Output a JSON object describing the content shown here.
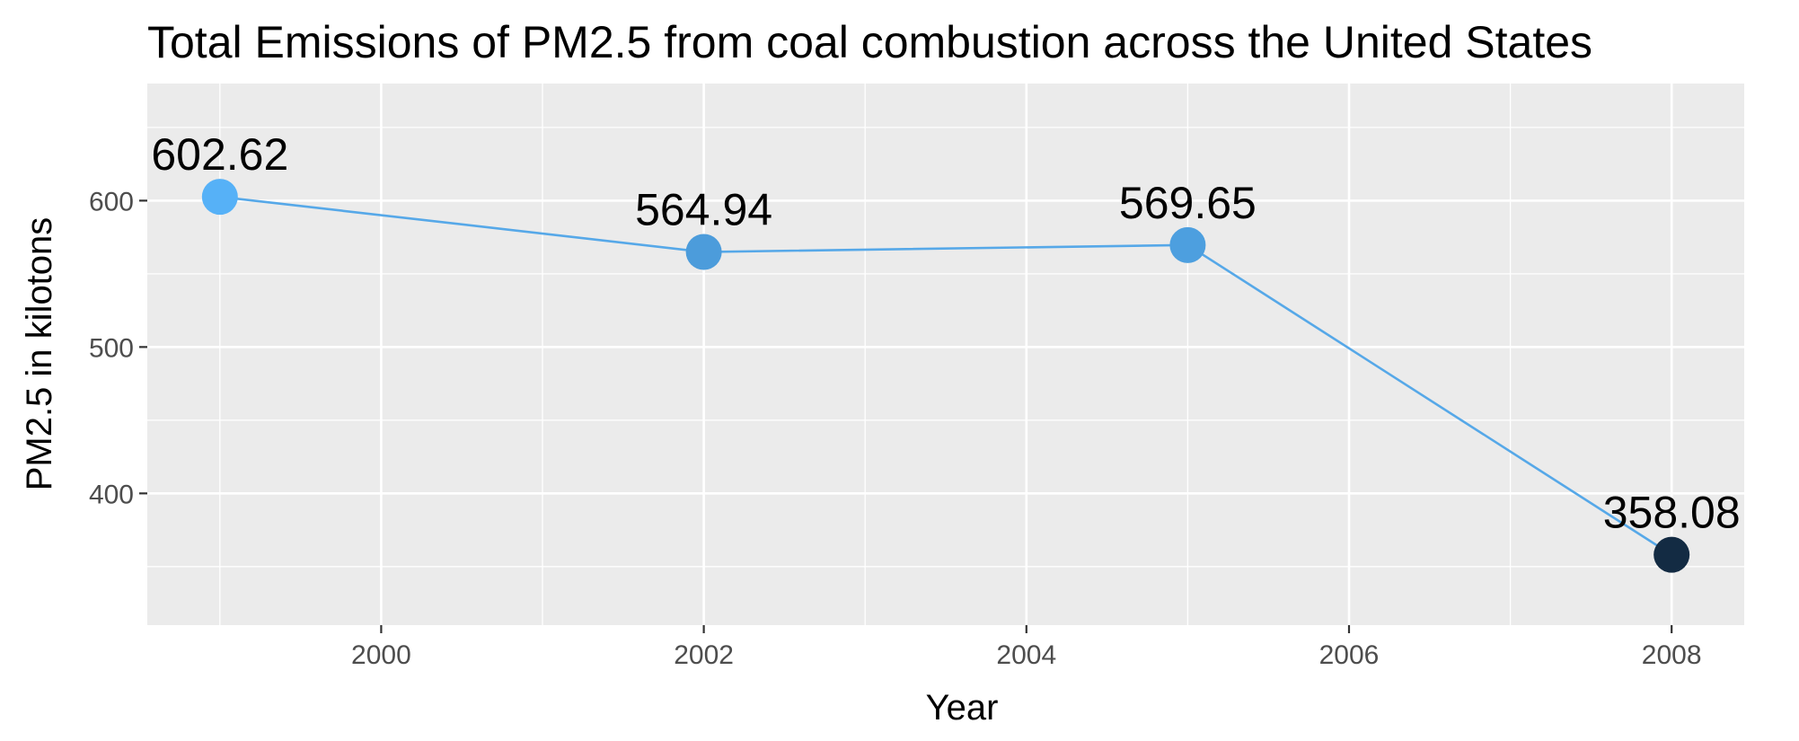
{
  "chart_data": {
    "type": "line",
    "title": "Total Emissions of PM2.5 from coal combustion across the United States",
    "xlabel": "Year",
    "ylabel": "PM2.5 in kilotons",
    "x": [
      1999,
      2002,
      2005,
      2008
    ],
    "values": [
      602.62,
      564.94,
      569.65,
      358.08
    ],
    "data_labels": [
      "602.62",
      "564.94",
      "569.65",
      "358.08"
    ],
    "xlim": [
      1998.55,
      2008.45
    ],
    "ylim": [
      310,
      680
    ],
    "x_ticks": [
      2000,
      2002,
      2004,
      2006,
      2008
    ],
    "x_tick_labels": [
      "2000",
      "2002",
      "2004",
      "2006",
      "2008"
    ],
    "y_ticks": [
      400,
      500,
      600
    ],
    "y_tick_labels": [
      "400",
      "500",
      "600"
    ],
    "grid": true,
    "legend": "none",
    "colors": {
      "panel_background": "#EBEBEB",
      "grid": "#FFFFFF",
      "line": "#56A8E8",
      "point_low": "#132B43",
      "point_high": "#56B1F7"
    }
  }
}
